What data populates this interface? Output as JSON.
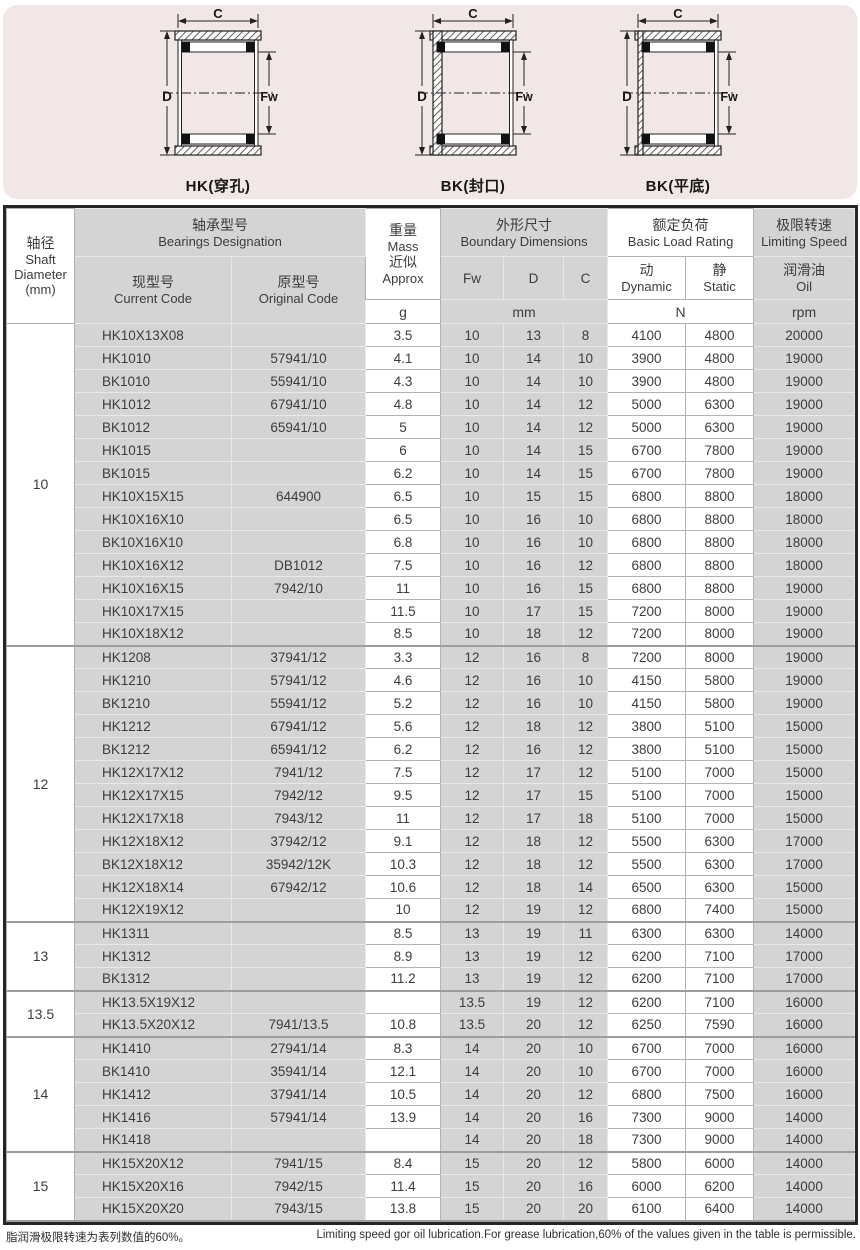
{
  "colors": {
    "banner_background": "#f1e7e6",
    "cell_gray": "#d4d4d4",
    "table_border": "#262626",
    "text": "#3c3c3c"
  },
  "diagrams": {
    "dims": {
      "c": "C",
      "d": "D",
      "fw": "Fw"
    },
    "items": [
      {
        "label": "HK(穿孔)",
        "type": "open"
      },
      {
        "label": "BK(封口)",
        "type": "closed"
      },
      {
        "label": "BK(平底)",
        "type": "flat"
      }
    ]
  },
  "table": {
    "header": {
      "shaft": [
        "轴径",
        "Shaft",
        "Diameter",
        "(mm)"
      ],
      "designation": [
        "轴承型号",
        "Bearings Designation"
      ],
      "current": [
        "现型号",
        "Current Code"
      ],
      "original": [
        "原型号",
        "Original Code"
      ],
      "mass": [
        "重量",
        "Mass",
        "近似",
        "Approx"
      ],
      "mass_unit": "g",
      "dims": [
        "外形尺寸",
        "Boundary Dimensions"
      ],
      "fw": "Fw",
      "d": "D",
      "c": "C",
      "dims_unit": "mm",
      "load": [
        "额定负荷",
        "Basic Load Rating"
      ],
      "dynamic": [
        "动",
        "Dynamic"
      ],
      "static": [
        "静",
        "Static"
      ],
      "load_unit": "N",
      "speed": [
        "极限转速",
        "Limiting Speed"
      ],
      "oil": [
        "润滑油",
        "Oil"
      ],
      "speed_unit": "rpm"
    },
    "groups": [
      {
        "shaft": "10",
        "rows": [
          [
            "HK10X13X08",
            "",
            "3.5",
            "10",
            "13",
            "8",
            "4100",
            "4800",
            "20000"
          ],
          [
            "HK1010",
            "57941/10",
            "4.1",
            "10",
            "14",
            "10",
            "3900",
            "4800",
            "19000"
          ],
          [
            "BK1010",
            "55941/10",
            "4.3",
            "10",
            "14",
            "10",
            "3900",
            "4800",
            "19000"
          ],
          [
            "HK1012",
            "67941/10",
            "4.8",
            "10",
            "14",
            "12",
            "5000",
            "6300",
            "19000"
          ],
          [
            "BK1012",
            "65941/10",
            "5",
            "10",
            "14",
            "12",
            "5000",
            "6300",
            "19000"
          ],
          [
            "HK1015",
            "",
            "6",
            "10",
            "14",
            "15",
            "6700",
            "7800",
            "19000"
          ],
          [
            "BK1015",
            "",
            "6.2",
            "10",
            "14",
            "15",
            "6700",
            "7800",
            "19000"
          ],
          [
            "HK10X15X15",
            "644900",
            "6.5",
            "10",
            "15",
            "15",
            "6800",
            "8800",
            "18000"
          ],
          [
            "HK10X16X10",
            "",
            "6.5",
            "10",
            "16",
            "10",
            "6800",
            "8800",
            "18000"
          ],
          [
            "BK10X16X10",
            "",
            "6.8",
            "10",
            "16",
            "10",
            "6800",
            "8800",
            "18000"
          ],
          [
            "HK10X16X12",
            "DB1012",
            "7.5",
            "10",
            "16",
            "12",
            "6800",
            "8800",
            "18000"
          ],
          [
            "HK10X16X15",
            "7942/10",
            "11",
            "10",
            "16",
            "15",
            "6800",
            "8800",
            "19000"
          ],
          [
            "HK10X17X15",
            "",
            "11.5",
            "10",
            "17",
            "15",
            "7200",
            "8000",
            "19000"
          ],
          [
            "HK10X18X12",
            "",
            "8.5",
            "10",
            "18",
            "12",
            "7200",
            "8000",
            "19000"
          ]
        ]
      },
      {
        "shaft": "12",
        "rows": [
          [
            "HK1208",
            "37941/12",
            "3.3",
            "12",
            "16",
            "8",
            "7200",
            "8000",
            "19000"
          ],
          [
            "HK1210",
            "57941/12",
            "4.6",
            "12",
            "16",
            "10",
            "4150",
            "5800",
            "19000"
          ],
          [
            "BK1210",
            "55941/12",
            "5.2",
            "12",
            "16",
            "10",
            "4150",
            "5800",
            "19000"
          ],
          [
            "HK1212",
            "67941/12",
            "5.6",
            "12",
            "18",
            "12",
            "3800",
            "5100",
            "15000"
          ],
          [
            "BK1212",
            "65941/12",
            "6.2",
            "12",
            "16",
            "12",
            "3800",
            "5100",
            "15000"
          ],
          [
            "HK12X17X12",
            "7941/12",
            "7.5",
            "12",
            "17",
            "12",
            "5100",
            "7000",
            "15000"
          ],
          [
            "HK12X17X15",
            "7942/12",
            "9.5",
            "12",
            "17",
            "15",
            "5100",
            "7000",
            "15000"
          ],
          [
            "HK12X17X18",
            "7943/12",
            "11",
            "12",
            "17",
            "18",
            "5100",
            "7000",
            "15000"
          ],
          [
            "HK12X18X12",
            "37942/12",
            "9.1",
            "12",
            "18",
            "12",
            "5500",
            "6300",
            "17000"
          ],
          [
            "BK12X18X12",
            "35942/12K",
            "10.3",
            "12",
            "18",
            "12",
            "5500",
            "6300",
            "17000"
          ],
          [
            "HK12X18X14",
            "67942/12",
            "10.6",
            "12",
            "18",
            "14",
            "6500",
            "6300",
            "15000"
          ],
          [
            "HK12X19X12",
            "",
            "10",
            "12",
            "19",
            "12",
            "6800",
            "7400",
            "15000"
          ]
        ]
      },
      {
        "shaft": "13",
        "rows": [
          [
            "HK1311",
            "",
            "8.5",
            "13",
            "19",
            "11",
            "6300",
            "6300",
            "14000"
          ],
          [
            "HK1312",
            "",
            "8.9",
            "13",
            "19",
            "12",
            "6200",
            "7100",
            "17000"
          ],
          [
            "BK1312",
            "",
            "11.2",
            "13",
            "19",
            "12",
            "6200",
            "7100",
            "17000"
          ]
        ]
      },
      {
        "shaft": "13.5",
        "rows": [
          [
            "HK13.5X19X12",
            "",
            "",
            "13.5",
            "19",
            "12",
            "6200",
            "7100",
            "16000"
          ],
          [
            "HK13.5X20X12",
            "7941/13.5",
            "10.8",
            "13.5",
            "20",
            "12",
            "6250",
            "7590",
            "16000"
          ]
        ]
      },
      {
        "shaft": "14",
        "rows": [
          [
            "HK1410",
            "27941/14",
            "8.3",
            "14",
            "20",
            "10",
            "6700",
            "7000",
            "16000"
          ],
          [
            "BK1410",
            "35941/14",
            "12.1",
            "14",
            "20",
            "10",
            "6700",
            "7000",
            "16000"
          ],
          [
            "HK1412",
            "37941/14",
            "10.5",
            "14",
            "20",
            "12",
            "6800",
            "7500",
            "16000"
          ],
          [
            "HK1416",
            "57941/14",
            "13.9",
            "14",
            "20",
            "16",
            "7300",
            "9000",
            "14000"
          ],
          [
            "HK1418",
            "",
            "",
            "14",
            "20",
            "18",
            "7300",
            "9000",
            "14000"
          ]
        ]
      },
      {
        "shaft": "15",
        "rows": [
          [
            "HK15X20X12",
            "7941/15",
            "8.4",
            "15",
            "20",
            "12",
            "5800",
            "6000",
            "14000"
          ],
          [
            "HK15X20X16",
            "7942/15",
            "11.4",
            "15",
            "20",
            "16",
            "6000",
            "6200",
            "14000"
          ],
          [
            "HK15X20X20",
            "7943/15",
            "13.8",
            "15",
            "20",
            "20",
            "6100",
            "6400",
            "14000"
          ]
        ]
      }
    ]
  },
  "footer": {
    "note_zh": "脂润滑极限转速为表列数值的60%。",
    "note_en": "Limiting speed gor oil lubrication.For grease lubrication,60% of the values given in the table is permissible."
  }
}
